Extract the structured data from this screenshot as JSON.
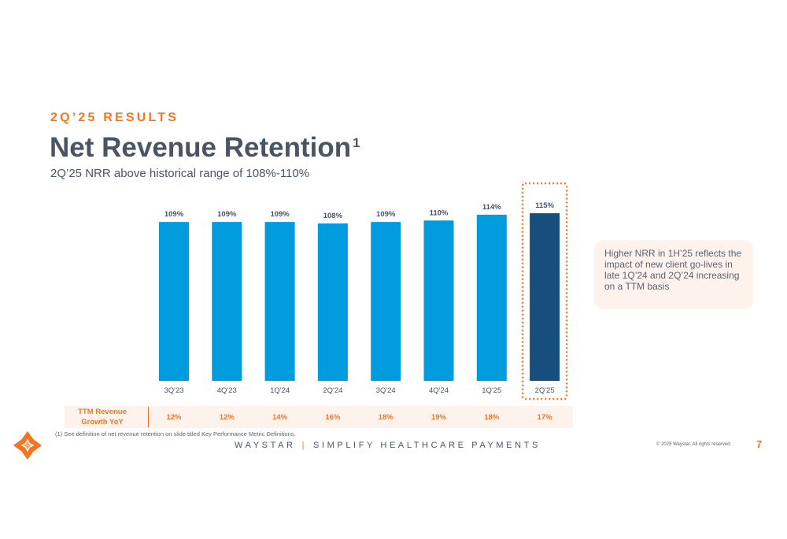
{
  "header": {
    "eyebrow": "2Q’25 RESULTS",
    "title": "Net Revenue Retention",
    "title_footnote_marker": "1",
    "subtitle": "2Q’25 NRR above historical range of 108%-110%"
  },
  "chart_data": {
    "type": "bar",
    "title": "Net Revenue Retention",
    "categories": [
      "3Q'23",
      "4Q'23",
      "1Q'24",
      "2Q'24",
      "3Q'24",
      "4Q'24",
      "1Q'25",
      "2Q'25"
    ],
    "values": [
      109,
      109,
      109,
      108,
      109,
      110,
      114,
      115
    ],
    "value_labels": [
      "109%",
      "109%",
      "109%",
      "108%",
      "109%",
      "110%",
      "114%",
      "115%"
    ],
    "unit": "%",
    "highlight_index": 7,
    "colors": {
      "bar": "#009cde",
      "highlight": "#164f7e",
      "highlight_outline": "#f47521"
    },
    "xlabel": "",
    "ylabel": ""
  },
  "callout": {
    "text": "Higher NRR in 1H’25 reflects the impact of new client go-lives in late 1Q’24 and 2Q’24 increasing on a TTM basis"
  },
  "ttm_row": {
    "label_line1": "TTM Revenue",
    "label_line2": "Growth YoY",
    "values": [
      "12%",
      "12%",
      "14%",
      "16%",
      "18%",
      "19%",
      "18%",
      "17%"
    ]
  },
  "footer": {
    "footnote": "(1)  See definition of net revenue retention on slide titled Key Performance Metric Definitions.",
    "brand": "WAYSTAR",
    "separator": "|",
    "tagline": "SIMPLIFY HEALTHCARE PAYMENTS",
    "copyright": "© 2025 Waystar. All rights reserved.",
    "page_number": "7"
  },
  "colors": {
    "accent": "#f47521",
    "text": "#4a5563",
    "bar": "#009cde",
    "highlight": "#164f7e"
  }
}
